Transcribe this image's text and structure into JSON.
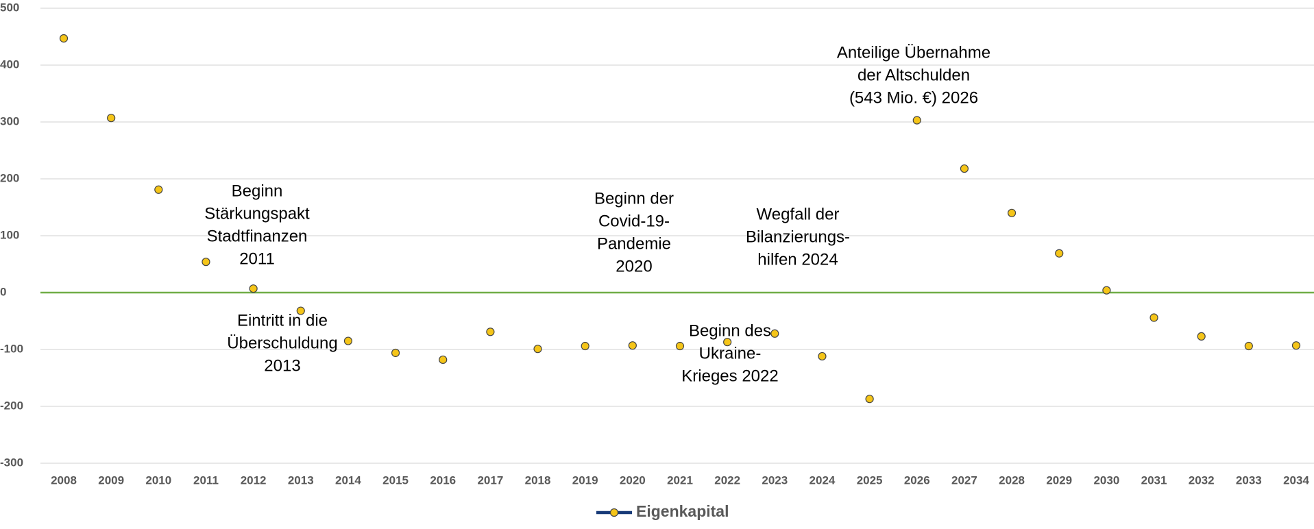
{
  "chart_data": {
    "type": "line",
    "categories": [
      "2008",
      "2009",
      "2010",
      "2011",
      "2012",
      "2013",
      "2014",
      "2015",
      "2016",
      "2017",
      "2018",
      "2019",
      "2020",
      "2021",
      "2022",
      "2023",
      "2024",
      "2025",
      "2026",
      "2027",
      "2028",
      "2029",
      "2030",
      "2031",
      "2032",
      "2033",
      "2034"
    ],
    "series": [
      {
        "name": "Eigenkapital",
        "color": "#173a78",
        "marker_color": "#f5c518",
        "values": [
          447,
          307,
          181,
          54,
          7,
          -32,
          -85,
          -106,
          -118,
          -69,
          -99,
          -94,
          -93,
          -94,
          -87,
          -72,
          -112,
          -187,
          303,
          218,
          140,
          69,
          4,
          -44,
          -77,
          -94,
          -93
        ]
      }
    ],
    "ylim": [
      -300,
      500
    ],
    "yticks": [
      -300,
      -200,
      -100,
      0,
      100,
      200,
      300,
      400,
      500
    ],
    "grid": true,
    "zero_line_color": "#70ad47",
    "legend": "bottom",
    "annotations": [
      {
        "lines": [
          "Beginn",
          "Stärkungspakt",
          "Stadtfinanzen",
          "2011"
        ]
      },
      {
        "lines": [
          "Eintritt in die",
          "Überschuldung",
          "2013"
        ]
      },
      {
        "lines": [
          "Beginn der",
          "Covid-19-",
          "Pandemie",
          "2020"
        ]
      },
      {
        "lines": [
          "Wegfall der",
          "Bilanzierungs-",
          "hilfen 2024"
        ]
      },
      {
        "lines": [
          "Beginn des",
          "Ukraine-",
          "Krieges 2022"
        ]
      },
      {
        "lines": [
          "Anteilige Übernahme",
          "der Altschulden",
          "(543 Mio. €) 2026"
        ]
      }
    ]
  }
}
